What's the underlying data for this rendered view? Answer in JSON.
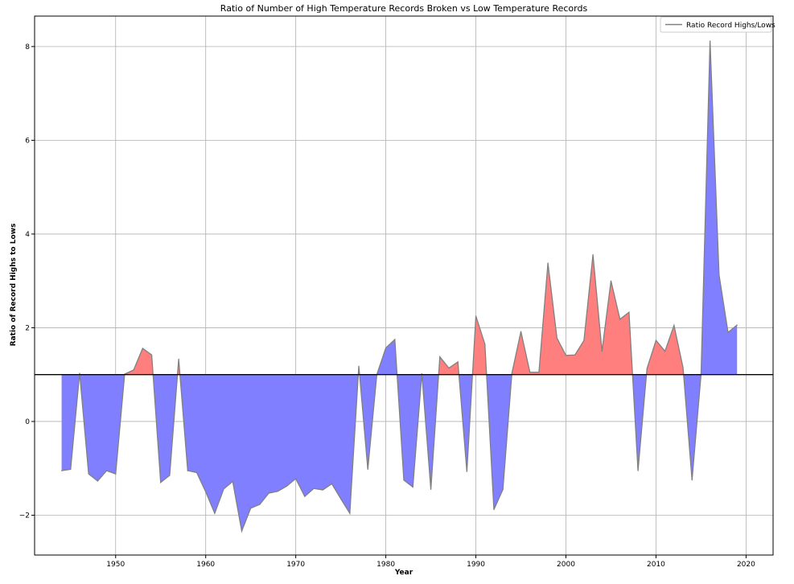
{
  "chart_data": {
    "type": "area",
    "title": "Ratio of Number of High Temperature Records Broken vs Low Temperature Records",
    "xlabel": "Year",
    "ylabel": "Ratio of Record Highs to Lows",
    "xlim": [
      1941,
      2023
    ],
    "ylim": [
      -2.85,
      8.65
    ],
    "baseline": 1,
    "x_ticks": [
      1950,
      1960,
      1970,
      1980,
      1990,
      2000,
      2010,
      2020
    ],
    "y_ticks": [
      -2,
      0,
      2,
      4,
      6,
      8
    ],
    "grid": true,
    "legend_position": "top-right",
    "colors": {
      "above": "#ff7f7f",
      "below": "#7f7fff",
      "line": "#808080",
      "baseline": "#000000",
      "grid": "#b0b0b0"
    },
    "series": [
      {
        "name": "Ratio Record Highs/Lows",
        "x": [
          1944,
          1945,
          1946,
          1947,
          1948,
          1949,
          1950,
          1951,
          1952,
          1953,
          1954,
          1955,
          1956,
          1957,
          1958,
          1959,
          1960,
          1961,
          1962,
          1963,
          1964,
          1965,
          1966,
          1967,
          1968,
          1969,
          1970,
          1971,
          1972,
          1973,
          1974,
          1975,
          1976,
          1977,
          1978,
          1979,
          1980,
          1981,
          1982,
          1983,
          1984,
          1985,
          1986,
          1987,
          1988,
          1989,
          1990,
          1991,
          1992,
          1993,
          1994,
          1995,
          1996,
          1997,
          1998,
          1999,
          2000,
          2001,
          2002,
          2003,
          2004,
          2005,
          2006,
          2007,
          2008,
          2009,
          2010,
          2011,
          2012,
          2013,
          2014,
          2015,
          2016,
          2017,
          2018,
          2019
        ],
        "values": [
          -1.05,
          -1.02,
          1.03,
          -1.12,
          -1.27,
          -1.05,
          -1.12,
          1.01,
          1.1,
          1.56,
          1.42,
          -1.3,
          -1.15,
          1.33,
          -1.05,
          -1.09,
          -1.5,
          -1.96,
          -1.44,
          -1.28,
          -2.34,
          -1.85,
          -1.77,
          -1.53,
          -1.49,
          -1.38,
          -1.22,
          -1.6,
          -1.43,
          -1.46,
          -1.33,
          -1.65,
          -1.96,
          1.18,
          -1.02,
          1.0,
          1.57,
          1.75,
          -1.25,
          -1.4,
          1.02,
          -1.45,
          1.38,
          1.14,
          1.27,
          -1.07,
          2.25,
          1.65,
          -1.88,
          -1.45,
          1.03,
          1.92,
          1.05,
          1.05,
          3.38,
          1.78,
          1.41,
          1.42,
          1.73,
          3.56,
          1.5,
          3.0,
          2.18,
          2.33,
          -1.05,
          1.13,
          1.73,
          1.5,
          2.05,
          1.15,
          -1.25,
          1.0,
          8.12,
          3.13,
          1.9,
          2.06
        ]
      }
    ]
  }
}
